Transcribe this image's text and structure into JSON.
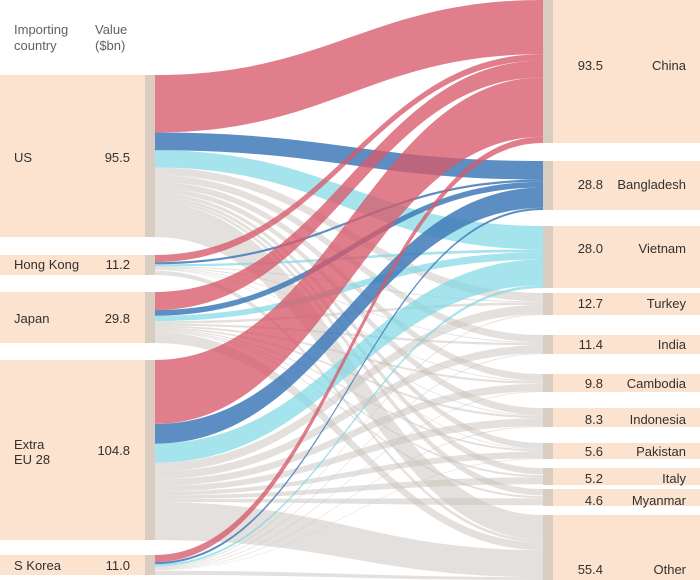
{
  "header": {
    "country_line1": "Importing",
    "country_line2": "country",
    "value_line1": "Value",
    "value_line2": "($bn)"
  },
  "importers": [
    {
      "name": "US",
      "value": "95.5"
    },
    {
      "name": "Hong Kong",
      "value": "11.2"
    },
    {
      "name": "Japan",
      "value": "29.8"
    },
    {
      "name": "Extra EU 28",
      "name_lines": [
        "Extra",
        "EU 28"
      ],
      "value": "104.8"
    },
    {
      "name": "S Korea",
      "value": "11.0"
    }
  ],
  "exporters": [
    {
      "name": "China",
      "value": "93.5"
    },
    {
      "name": "Bangladesh",
      "value": "28.8"
    },
    {
      "name": "Vietnam",
      "value": "28.0"
    },
    {
      "name": "Turkey",
      "value": "12.7"
    },
    {
      "name": "India",
      "value": "11.4"
    },
    {
      "name": "Cambodia",
      "value": "9.8"
    },
    {
      "name": "Indonesia",
      "value": "8.3"
    },
    {
      "name": "Pakistan",
      "value": "5.6"
    },
    {
      "name": "Italy",
      "value": "5.2"
    },
    {
      "name": "Myanmar",
      "value": "4.6"
    },
    {
      "name": "Other",
      "value": "55.4"
    }
  ],
  "colors": {
    "node_fill": "#fbe3d0",
    "node_bar": "#d9ccc1",
    "china": "#d75a6a",
    "bangladesh": "#3f7ab9",
    "vietnam": "#7fd8e4",
    "other": "#c9c2bc"
  }
}
